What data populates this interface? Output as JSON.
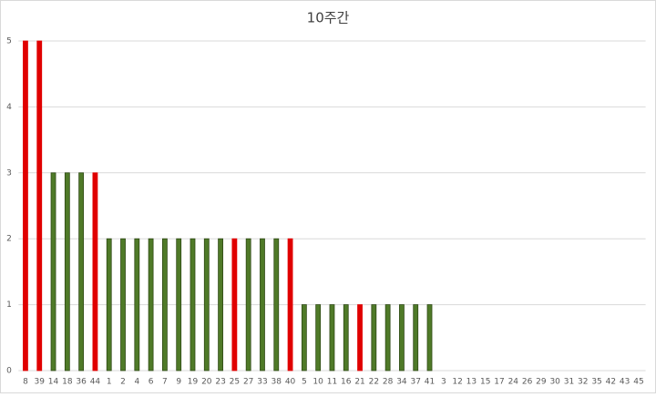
{
  "chart_data": {
    "type": "bar",
    "title": "10주간",
    "categories": [
      "8",
      "39",
      "14",
      "18",
      "36",
      "44",
      "1",
      "2",
      "4",
      "6",
      "7",
      "9",
      "19",
      "20",
      "23",
      "25",
      "27",
      "33",
      "38",
      "40",
      "5",
      "10",
      "11",
      "16",
      "21",
      "22",
      "28",
      "34",
      "37",
      "41",
      "3",
      "12",
      "13",
      "15",
      "17",
      "24",
      "26",
      "29",
      "30",
      "31",
      "32",
      "35",
      "42",
      "43",
      "45"
    ],
    "values": [
      5,
      5,
      3,
      3,
      3,
      3,
      2,
      2,
      2,
      2,
      2,
      2,
      2,
      2,
      2,
      2,
      2,
      2,
      2,
      2,
      1,
      1,
      1,
      1,
      1,
      1,
      1,
      1,
      1,
      1,
      0,
      0,
      0,
      0,
      0,
      0,
      0,
      0,
      0,
      0,
      0,
      0,
      0,
      0,
      0
    ],
    "colors": [
      "#e00000",
      "#e00000",
      "#4f7a28",
      "#4f7a28",
      "#4f7a28",
      "#e00000",
      "#4f7a28",
      "#4f7a28",
      "#4f7a28",
      "#4f7a28",
      "#4f7a28",
      "#4f7a28",
      "#4f7a28",
      "#4f7a28",
      "#4f7a28",
      "#e00000",
      "#4f7a28",
      "#4f7a28",
      "#4f7a28",
      "#e00000",
      "#4f7a28",
      "#4f7a28",
      "#4f7a28",
      "#4f7a28",
      "#e00000",
      "#4f7a28",
      "#4f7a28",
      "#4f7a28",
      "#4f7a28",
      "#4f7a28",
      "#4f7a28",
      "#4f7a28",
      "#4f7a28",
      "#4f7a28",
      "#4f7a28",
      "#4f7a28",
      "#4f7a28",
      "#4f7a28",
      "#4f7a28",
      "#4f7a28",
      "#4f7a28",
      "#4f7a28",
      "#4f7a28",
      "#4f7a28",
      "#4f7a28"
    ],
    "ylim": [
      0,
      5
    ],
    "yticks": [
      0,
      1,
      2,
      3,
      4,
      5
    ],
    "grid": true
  }
}
